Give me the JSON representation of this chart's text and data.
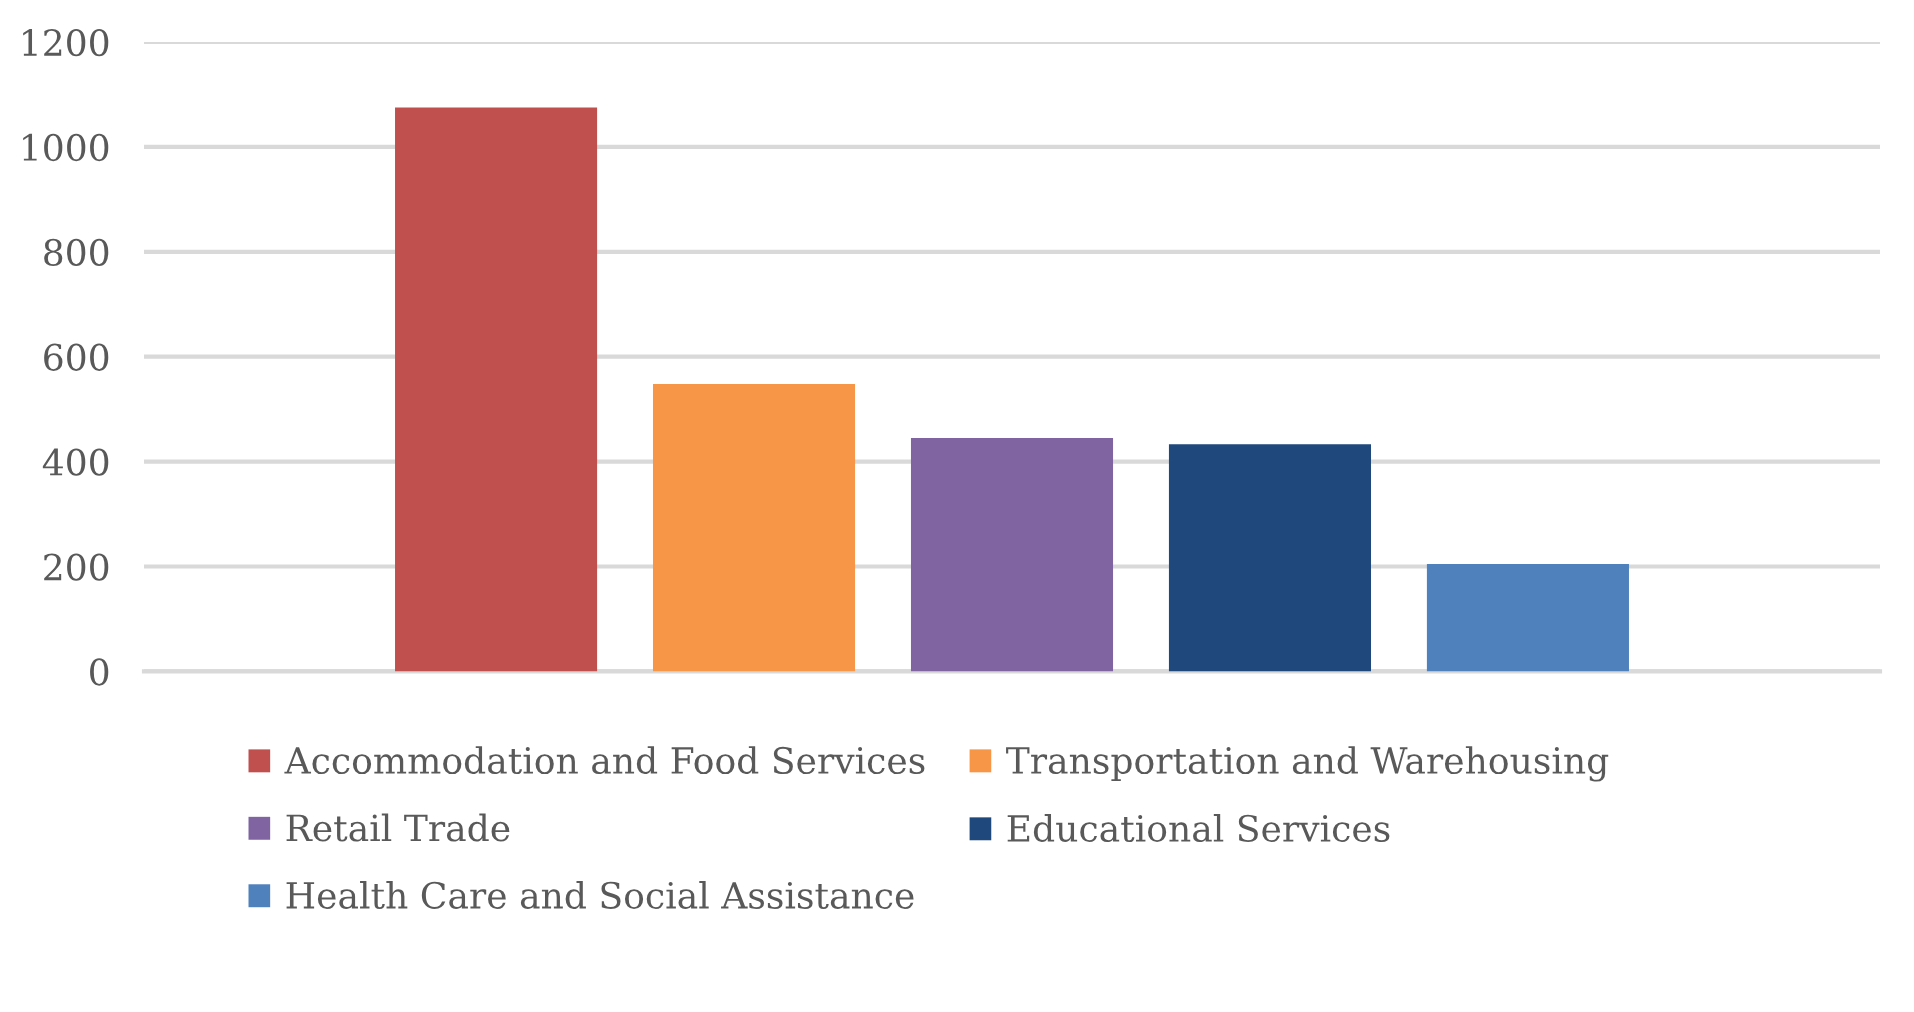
{
  "chart_data": {
    "type": "bar",
    "categories": [
      null
    ],
    "series": [
      {
        "name": "Accommodation and Food Services",
        "color": "#c0504d",
        "values": [
          1075
        ]
      },
      {
        "name": "Transportation and Warehousing",
        "color": "#f79646",
        "values": [
          548
        ]
      },
      {
        "name": "Retail Trade",
        "color": "#8064a2",
        "values": [
          445
        ]
      },
      {
        "name": "Educational Services",
        "color": "#1f497d",
        "values": [
          433
        ]
      },
      {
        "name": "Health Care and Social Assistance",
        "color": "#4f81bd",
        "values": [
          205
        ]
      }
    ],
    "ylim": [
      0,
      1200
    ],
    "yticks": [
      0,
      200,
      400,
      600,
      800,
      1000,
      1200
    ],
    "grid": "y",
    "legend": "bottom"
  }
}
